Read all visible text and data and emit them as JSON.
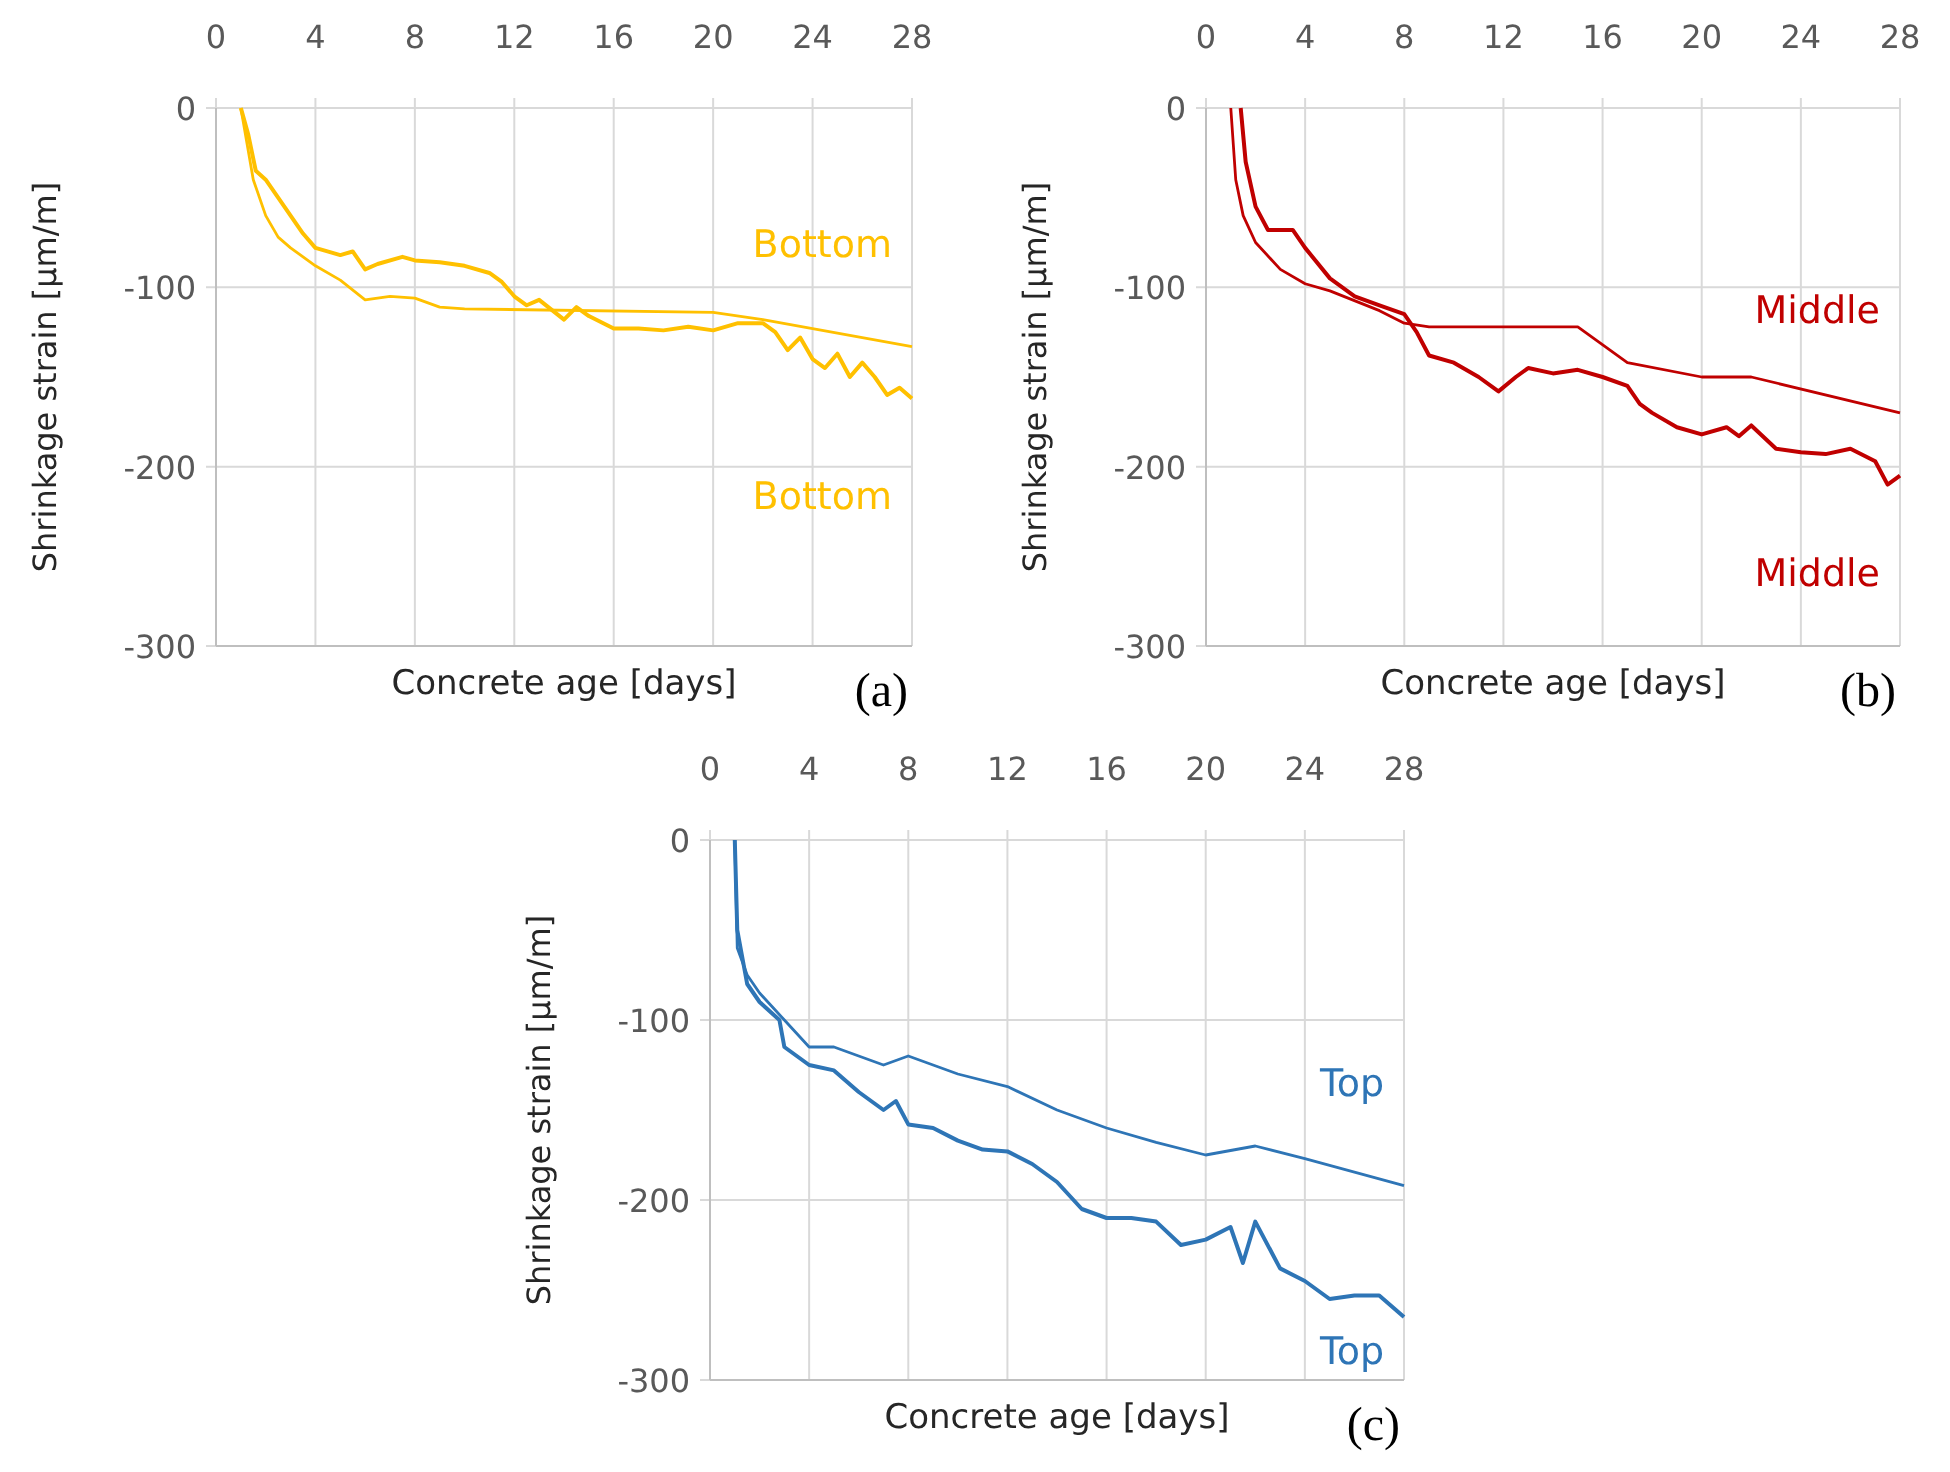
{
  "chart_data": [
    {
      "type": "line",
      "xlabel": "Concrete age [days]",
      "ylabel": "Shrinkage strain [µm/m]",
      "xlim": [
        0,
        28
      ],
      "xticks": [
        0,
        4,
        8,
        12,
        16,
        20,
        24,
        28
      ],
      "ylim": [
        -300,
        0
      ],
      "yticks": [
        -300,
        -200,
        -100,
        0
      ],
      "grid": true,
      "annotations": [
        "(a)"
      ],
      "series": [
        {
          "name": "Bottom",
          "color": "#ffc000",
          "x": [
            1,
            1.5,
            2,
            2.5,
            3,
            4,
            5,
            6,
            7,
            8,
            9,
            10,
            20,
            22,
            28
          ],
          "values": [
            0,
            -40,
            -60,
            -72,
            -78,
            -88,
            -96,
            -107,
            -105,
            -106,
            -111,
            -112,
            -114,
            -118,
            -133
          ]
        },
        {
          "name": "Bottom",
          "color": "#ffc000",
          "x": [
            1,
            1.3,
            1.6,
            2,
            2.5,
            3,
            3.5,
            4,
            5,
            5.5,
            6,
            6.5,
            7.5,
            8,
            9,
            10,
            11,
            11.5,
            12,
            12.5,
            13,
            14,
            14.5,
            15,
            16,
            17,
            18,
            19,
            20,
            21,
            22,
            22.5,
            23,
            23.5,
            24,
            24.5,
            25,
            25.5,
            26,
            26.5,
            27,
            27.5,
            28
          ],
          "values": [
            0,
            -15,
            -35,
            -40,
            -50,
            -60,
            -70,
            -78,
            -82,
            -80,
            -90,
            -87,
            -83,
            -85,
            -86,
            -88,
            -92,
            -97,
            -105,
            -110,
            -107,
            -118,
            -111,
            -116,
            -123,
            -123,
            -124,
            -122,
            -124,
            -120,
            -120,
            -125,
            -135,
            -128,
            -140,
            -145,
            -137,
            -150,
            -142,
            -150,
            -160,
            -156,
            -162
          ]
        }
      ]
    },
    {
      "type": "line",
      "xlabel": "Concrete age [days]",
      "ylabel": "Shrinkage strain [µm/m]",
      "xlim": [
        0,
        28
      ],
      "xticks": [
        0,
        4,
        8,
        12,
        16,
        20,
        24,
        28
      ],
      "ylim": [
        -300,
        0
      ],
      "yticks": [
        -300,
        -200,
        -100,
        0
      ],
      "grid": true,
      "annotations": [
        "(b)"
      ],
      "series": [
        {
          "name": "Middle",
          "color": "#c00000",
          "x": [
            1,
            1.2,
            1.5,
            2,
            3,
            4,
            5,
            7,
            8,
            9,
            15,
            17,
            20,
            22,
            28
          ],
          "values": [
            0,
            -40,
            -60,
            -75,
            -90,
            -98,
            -102,
            -113,
            -120,
            -122,
            -122,
            -142,
            -150,
            -150,
            -170
          ]
        },
        {
          "name": "Middle",
          "color": "#c00000",
          "x": [
            1.4,
            1.6,
            2,
            2.5,
            3.5,
            4,
            5,
            6,
            7,
            8,
            8.5,
            9,
            10,
            11,
            11.8,
            12.5,
            13,
            14,
            15,
            16,
            17,
            17.5,
            18,
            19,
            20,
            21,
            21.5,
            22,
            23,
            24,
            25,
            26,
            27,
            27.5,
            28
          ],
          "values": [
            0,
            -30,
            -55,
            -68,
            -68,
            -78,
            -95,
            -105,
            -110,
            -115,
            -125,
            -138,
            -142,
            -150,
            -158,
            -150,
            -145,
            -148,
            -146,
            -150,
            -155,
            -165,
            -170,
            -178,
            -182,
            -178,
            -183,
            -177,
            -190,
            -192,
            -193,
            -190,
            -197,
            -210,
            -205
          ]
        }
      ]
    },
    {
      "type": "line",
      "xlabel": "Concrete age [days]",
      "ylabel": "Shrinkage strain [µm/m]",
      "xlim": [
        0,
        28
      ],
      "xticks": [
        0,
        4,
        8,
        12,
        16,
        20,
        24,
        28
      ],
      "ylim": [
        -300,
        0
      ],
      "yticks": [
        -300,
        -200,
        -100,
        0
      ],
      "grid": true,
      "annotations": [
        "(c)"
      ],
      "series": [
        {
          "name": "Top",
          "color": "#2e75b6",
          "x": [
            1,
            1.1,
            1.5,
            2,
            3,
            4,
            5,
            6,
            7,
            8,
            10,
            12,
            14,
            16,
            18,
            20,
            22,
            24,
            28
          ],
          "values": [
            0,
            -60,
            -75,
            -85,
            -100,
            -115,
            -115,
            -120,
            -125,
            -120,
            -130,
            -137,
            -150,
            -160,
            -168,
            -175,
            -170,
            -177,
            -192
          ]
        },
        {
          "name": "Top",
          "color": "#2e75b6",
          "x": [
            1,
            1.1,
            1.5,
            2,
            2.8,
            3,
            4,
            5,
            6,
            7,
            7.5,
            8,
            9,
            10,
            11,
            12,
            13,
            14,
            15,
            16,
            17,
            18,
            19,
            20,
            21,
            21.5,
            22,
            23,
            24,
            25,
            26,
            27,
            28
          ],
          "values": [
            0,
            -50,
            -80,
            -90,
            -100,
            -115,
            -125,
            -128,
            -140,
            -150,
            -145,
            -158,
            -160,
            -167,
            -172,
            -173,
            -180,
            -190,
            -205,
            -210,
            -210,
            -212,
            -225,
            -222,
            -215,
            -235,
            -212,
            -238,
            -245,
            -255,
            -253,
            -253,
            -265
          ]
        }
      ]
    }
  ]
}
